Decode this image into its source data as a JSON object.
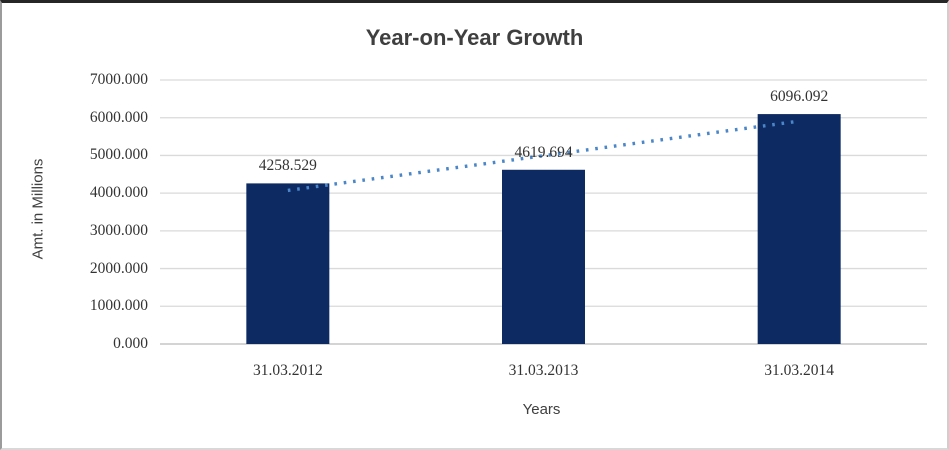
{
  "chart_data": {
    "type": "bar",
    "title": "Year-on-Year Growth",
    "xlabel": "Years",
    "ylabel": "Amt. in Millions",
    "categories": [
      "31.03.2012",
      "31.03.2013",
      "31.03.2014"
    ],
    "values": [
      4258.529,
      4619.694,
      6096.092
    ],
    "value_labels": [
      "4258.529",
      "4619.694",
      "6096.092"
    ],
    "yticks": [
      0,
      1000,
      2000,
      3000,
      4000,
      5000,
      6000,
      7000
    ],
    "ytick_labels": [
      "0.000",
      "1000.000",
      "2000.000",
      "3000.000",
      "4000.000",
      "5000.000",
      "6000.000",
      "7000.000"
    ],
    "ylim": [
      0,
      7000
    ],
    "grid": true,
    "legend": false,
    "trendline": {
      "type": "linear",
      "style": "dotted"
    },
    "colors": {
      "bar": "#0d2a63",
      "trendline": "#4a86c8",
      "gridline": "#dadada",
      "axis_line": "#d4d4d4",
      "text": "#333333",
      "title_text": "#3f3f3f"
    }
  }
}
